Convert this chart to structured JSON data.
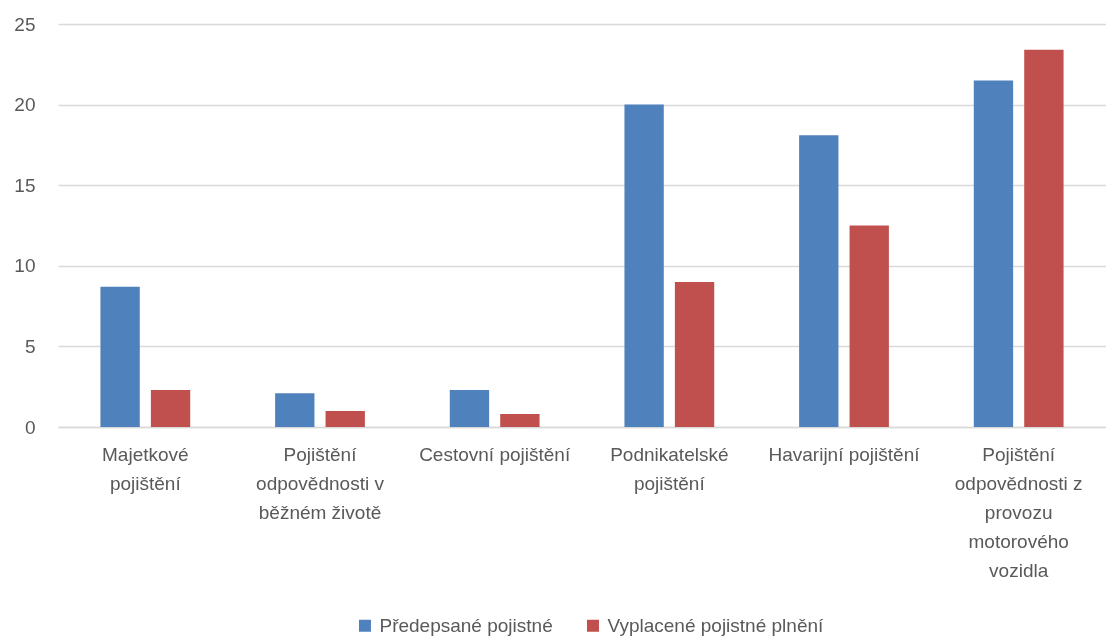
{
  "chart_data": {
    "type": "bar",
    "categories": [
      "Majetkové pojištění",
      "Pojištění odpovědnosti v běžném životě",
      "Cestovní pojištění",
      "Podnikatelské pojištění",
      "Havarijní pojištění",
      "Pojištění odpovědnosti z provozu motorového vozidla"
    ],
    "series": [
      {
        "name": "Předepsané pojistné",
        "color": "#4f81bd",
        "values": [
          8.7,
          2.1,
          2.3,
          20.0,
          18.1,
          21.5
        ]
      },
      {
        "name": "Vyplacené pojistné plnění",
        "color": "#c0504d",
        "values": [
          2.3,
          1.0,
          0.8,
          9.0,
          12.5,
          23.4
        ]
      }
    ],
    "ylim": [
      0,
      25
    ],
    "yticks": [
      0,
      5,
      10,
      15,
      20,
      25
    ],
    "grid": "y",
    "legend": "bottom"
  }
}
